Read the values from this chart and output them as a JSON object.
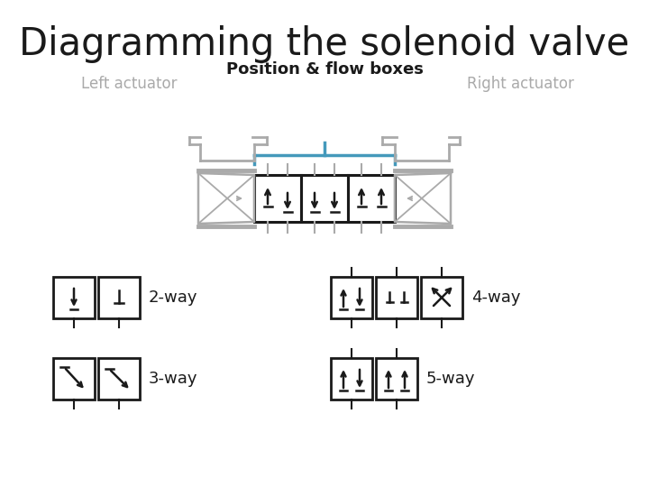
{
  "title": "Diagramming the solenoid valve",
  "subtitle": "Position & flow boxes",
  "left_actuator_label": "Left actuator",
  "right_actuator_label": "Right actuator",
  "title_fontsize": 30,
  "subtitle_fontsize": 13,
  "label_fontsize": 12,
  "way_fontsize": 13,
  "bg_color": "#ffffff",
  "gray_color": "#aaaaaa",
  "blue_color": "#4499bb",
  "black_color": "#1a1a1a"
}
